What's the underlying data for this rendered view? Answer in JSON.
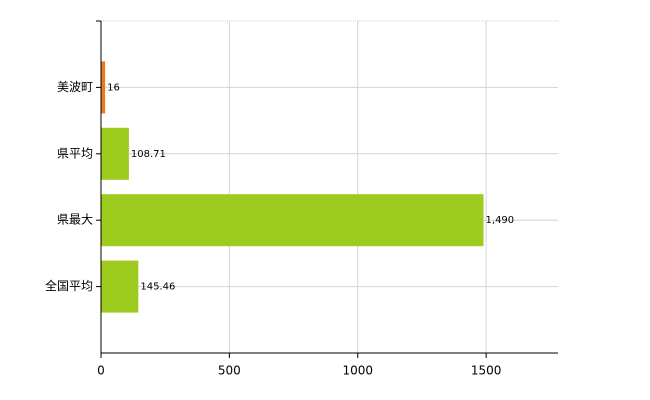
{
  "chart_data": {
    "type": "hbar",
    "categories": [
      "美波町",
      "県平均",
      "県最大",
      "全国平均"
    ],
    "values": [
      16,
      108.71,
      1490,
      145.46
    ],
    "value_labels": [
      "16",
      "108.71",
      "1,490",
      "145.46"
    ],
    "colors": [
      "#e8791e",
      "#9dcb1e",
      "#9dcb1e",
      "#9dcb1e"
    ],
    "xlim": [
      0,
      1780
    ],
    "xticks": [
      0,
      500,
      1000,
      1500
    ],
    "grid": true
  }
}
